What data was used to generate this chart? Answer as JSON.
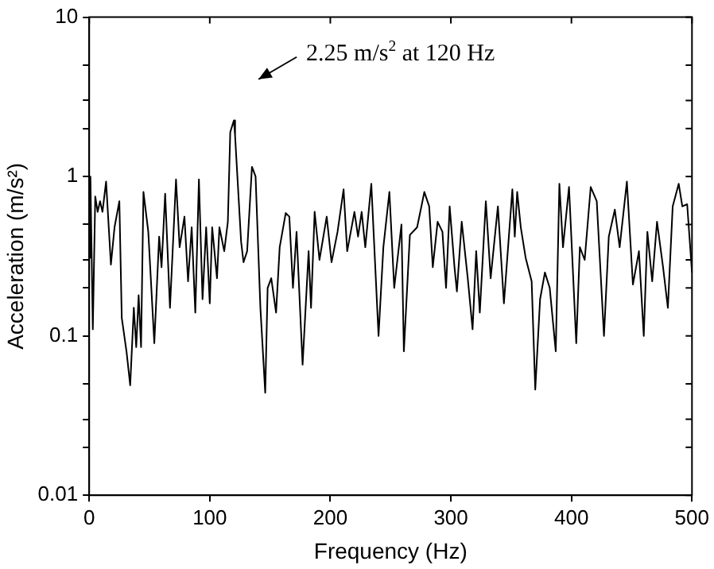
{
  "chart_data": {
    "type": "line",
    "xlabel": "Frequency (Hz)",
    "ylabel": "Acceleration (m/s²)",
    "log": "y",
    "grid": false,
    "legend": false,
    "marker": "none",
    "line_style": "solid",
    "xlim": [
      0,
      500
    ],
    "xticks": [
      0,
      100,
      200,
      300,
      400,
      500
    ],
    "ylim": [
      0.01,
      10
    ],
    "yticks": [
      0.01,
      {
        "value": 0.02,
        "label": null
      },
      {
        "value": 0.03,
        "label": null
      },
      {
        "value": 0.05,
        "label": null
      },
      0.1,
      {
        "value": 0.2,
        "label": null
      },
      {
        "value": 0.3,
        "label": null
      },
      {
        "value": 0.5,
        "label": null
      },
      1,
      {
        "value": 2,
        "label": null
      },
      {
        "value": 3,
        "label": null
      },
      {
        "value": 5,
        "label": null
      },
      10
    ],
    "annotations": [
      "2.25 m/s$^{2}$ at 120 Hz"
    ],
    "series": [
      {
        "color": "#000000",
        "x": [
          0,
          1,
          3,
          5,
          7,
          9,
          11,
          14,
          18,
          21,
          25,
          27,
          31,
          34,
          37,
          39,
          41,
          43,
          45,
          49,
          54,
          58,
          60,
          63,
          67,
          72,
          75,
          79,
          82,
          85,
          88,
          91,
          94,
          97,
          100,
          102,
          106,
          108,
          112,
          115,
          117,
          120,
          121,
          126,
          128,
          131,
          135,
          138,
          142,
          146,
          148,
          151,
          155,
          158,
          163,
          166,
          169,
          172,
          177,
          182,
          184,
          187,
          191,
          197,
          201,
          206,
          211,
          214,
          220,
          223,
          226,
          229,
          234,
          240,
          244,
          249,
          253,
          259,
          261,
          266,
          272,
          278,
          282,
          285,
          289,
          293,
          296,
          299,
          303,
          305,
          309,
          314,
          318,
          321,
          324,
          329,
          333,
          339,
          344,
          351,
          353,
          355,
          358,
          362,
          367,
          370,
          374,
          378,
          382,
          387,
          390,
          393,
          398,
          404,
          407,
          411,
          416,
          421,
          427,
          431,
          436,
          440,
          446,
          451,
          456,
          460,
          463,
          467,
          471,
          476,
          480,
          484,
          489,
          492,
          496,
          500
        ],
        "values": [
          0.31,
          1.0,
          0.11,
          0.75,
          0.6,
          0.7,
          0.6,
          0.93,
          0.28,
          0.48,
          0.7,
          0.13,
          0.079,
          0.049,
          0.15,
          0.085,
          0.18,
          0.085,
          0.8,
          0.45,
          0.09,
          0.42,
          0.27,
          0.78,
          0.15,
          0.96,
          0.36,
          0.56,
          0.22,
          0.48,
          0.14,
          0.96,
          0.17,
          0.48,
          0.16,
          0.48,
          0.23,
          0.48,
          0.34,
          0.52,
          1.9,
          2.25,
          1.8,
          0.39,
          0.29,
          0.34,
          1.15,
          1.0,
          0.15,
          0.044,
          0.2,
          0.23,
          0.14,
          0.36,
          0.59,
          0.56,
          0.2,
          0.45,
          0.066,
          0.34,
          0.15,
          0.6,
          0.3,
          0.56,
          0.29,
          0.45,
          0.83,
          0.34,
          0.6,
          0.42,
          0.6,
          0.36,
          0.9,
          0.1,
          0.36,
          0.8,
          0.2,
          0.5,
          0.08,
          0.43,
          0.48,
          0.8,
          0.65,
          0.27,
          0.52,
          0.45,
          0.2,
          0.65,
          0.27,
          0.19,
          0.52,
          0.23,
          0.11,
          0.34,
          0.14,
          0.7,
          0.23,
          0.65,
          0.16,
          0.83,
          0.42,
          0.8,
          0.48,
          0.31,
          0.22,
          0.046,
          0.17,
          0.25,
          0.2,
          0.08,
          0.9,
          0.36,
          0.86,
          0.09,
          0.36,
          0.3,
          0.86,
          0.7,
          0.1,
          0.42,
          0.62,
          0.36,
          0.93,
          0.21,
          0.34,
          0.1,
          0.45,
          0.22,
          0.52,
          0.27,
          0.15,
          0.65,
          0.9,
          0.65,
          0.67,
          0.25
        ]
      }
    ]
  }
}
